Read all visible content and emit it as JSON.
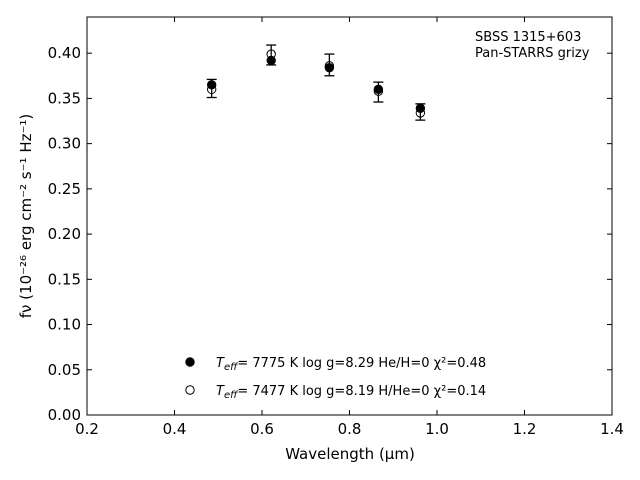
{
  "chart_data": {
    "type": "scatter",
    "xlabel": "Wavelength (μm)",
    "ylabel": "fν (10⁻²⁶ erg cm⁻² s⁻¹ Hz⁻¹)",
    "xlim": [
      0.2,
      1.4
    ],
    "ylim": [
      0.0,
      0.44
    ],
    "xticks": [
      0.2,
      0.4,
      0.6,
      0.8,
      1.0,
      1.2,
      1.4
    ],
    "yticks": [
      0.0,
      0.05,
      0.1,
      0.15,
      0.2,
      0.25,
      0.3,
      0.35,
      0.4
    ],
    "xtick_labels": [
      "0.2",
      "0.4",
      "0.6",
      "0.8",
      "1.0",
      "1.2",
      "1.4"
    ],
    "ytick_labels": [
      "0.00",
      "0.05",
      "0.10",
      "0.15",
      "0.20",
      "0.25",
      "0.30",
      "0.35",
      "0.40"
    ],
    "grid": false,
    "annotations": [
      "SBSS 1315+603",
      "Pan-STARRS grizy"
    ],
    "observed": {
      "x": [
        0.485,
        0.621,
        0.754,
        0.866,
        0.962
      ],
      "y": [
        0.361,
        0.398,
        0.387,
        0.357,
        0.335
      ],
      "yerr": [
        0.01,
        0.011,
        0.012,
        0.011,
        0.009
      ]
    },
    "series": [
      {
        "marker": "filled-circle",
        "legend_prefix": "T",
        "legend_sub": "eff",
        "legend_suffix": "=  7775 K  log g=8.29  He/H=0  χ²=0.48",
        "x": [
          0.485,
          0.621,
          0.754,
          0.866,
          0.962
        ],
        "y": [
          0.365,
          0.392,
          0.384,
          0.36,
          0.339
        ]
      },
      {
        "marker": "open-circle",
        "legend_prefix": "T",
        "legend_sub": "eff",
        "legend_suffix": "=  7477 K  log g=8.19  H/He=0  χ²=0.14",
        "x": [
          0.485,
          0.621,
          0.754,
          0.866,
          0.962
        ],
        "y": [
          0.36,
          0.399,
          0.386,
          0.358,
          0.334
        ]
      }
    ]
  }
}
